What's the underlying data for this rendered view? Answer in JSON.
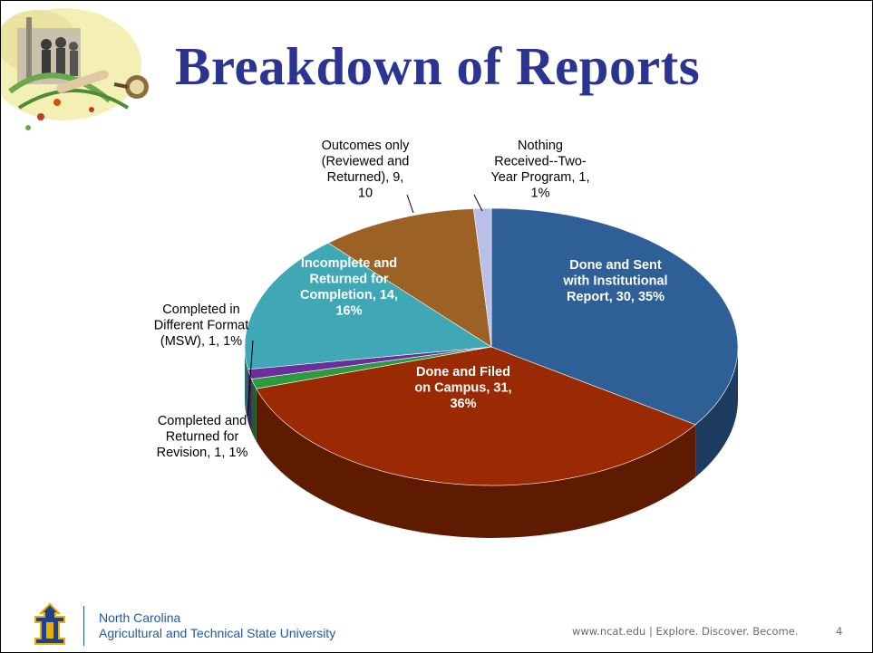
{
  "slide": {
    "title": "Breakdown of Reports",
    "footer": {
      "university_line1": "North Carolina",
      "university_line2": "Agricultural and Technical State University",
      "tagline": "www.ncat.edu | Explore. Discover. Become.",
      "page_number": "4"
    }
  },
  "chart_data": {
    "type": "pie",
    "title": "",
    "three_d": true,
    "legend": "none",
    "slices": [
      {
        "label_lines": [
          "Done and Sent",
          "with Institutional",
          "Report, 30, 35%"
        ],
        "value": 30,
        "percent": 35,
        "color": "#2f5f97",
        "label_inside": true
      },
      {
        "label_lines": [
          "Done and Filed",
          "on Campus, 31,",
          "36%"
        ],
        "value": 31,
        "percent": 36,
        "color": "#9a2a03",
        "label_inside": true
      },
      {
        "label_lines": [
          "Completed and",
          "Returned for",
          "Revision, 1, 1%"
        ],
        "value": 1,
        "percent": 1,
        "color": "#2e9a40",
        "label_inside": false
      },
      {
        "label_lines": [
          "Completed in",
          "Different Format",
          "(MSW), 1, 1%"
        ],
        "value": 1,
        "percent": 1,
        "color": "#6a2f9a",
        "label_inside": false
      },
      {
        "label_lines": [
          "Incomplete and",
          "Returned for",
          "Completion, 14,",
          "16%"
        ],
        "value": 14,
        "percent": 16,
        "color": "#3fa8b4",
        "label_inside": true
      },
      {
        "label_lines": [
          "Outcomes only",
          "(Reviewed and",
          "Returned), 9,",
          "10"
        ],
        "value": 9,
        "percent": 10,
        "color": "#9c6124",
        "label_inside": false
      },
      {
        "label_lines": [
          "Nothing",
          "Received--Two-",
          "Year Program, 1,",
          "1%"
        ],
        "value": 1,
        "percent": 1,
        "color": "#b9bfe6",
        "label_inside": false
      }
    ]
  }
}
